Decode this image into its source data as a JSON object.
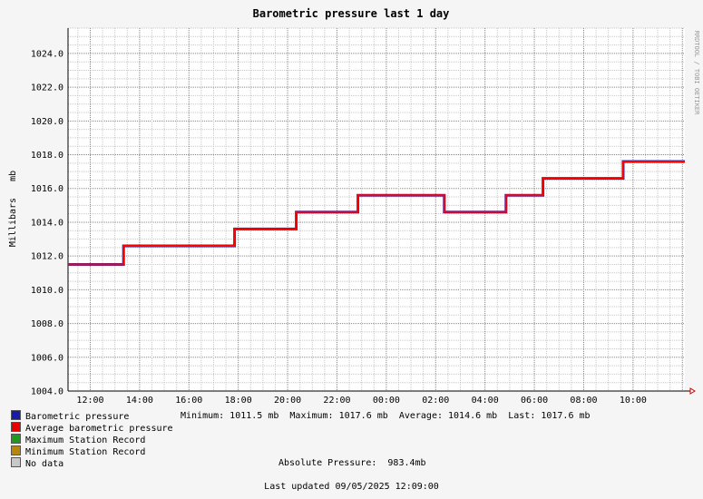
{
  "chart_data": {
    "type": "line",
    "title": "Barometric pressure last 1 day",
    "ylabel": "Millibars   mb",
    "watermark": "RRDTOOL / TOBI OETIKER",
    "ylim": [
      1004.0,
      1025.5
    ],
    "y_ticks": [
      "1004.0",
      "1006.0",
      "1008.0",
      "1010.0",
      "1012.0",
      "1014.0",
      "1016.0",
      "1018.0",
      "1020.0",
      "1022.0",
      "1024.0"
    ],
    "x_ticks": [
      "12:00",
      "14:00",
      "16:00",
      "18:00",
      "20:00",
      "22:00",
      "00:00",
      "02:00",
      "04:00",
      "06:00",
      "08:00",
      "10:00"
    ],
    "xlim_hours": [
      11.1,
      36.1
    ],
    "series": [
      {
        "name": "Average barometric pressure",
        "color": "#ff0000",
        "points": [
          [
            11.1,
            1011.5
          ],
          [
            13.35,
            1011.5
          ],
          [
            13.35,
            1012.6
          ],
          [
            17.85,
            1012.6
          ],
          [
            17.85,
            1013.6
          ],
          [
            20.35,
            1013.6
          ],
          [
            20.35,
            1014.6
          ],
          [
            22.85,
            1014.6
          ],
          [
            22.85,
            1015.6
          ],
          [
            26.35,
            1015.6
          ],
          [
            26.35,
            1014.6
          ],
          [
            28.85,
            1014.6
          ],
          [
            28.85,
            1015.6
          ],
          [
            30.35,
            1015.6
          ],
          [
            30.35,
            1016.6
          ],
          [
            33.6,
            1016.6
          ],
          [
            33.6,
            1017.6
          ],
          [
            36.1,
            1017.6
          ]
        ]
      }
    ]
  },
  "legend": [
    {
      "label": "Barometric pressure",
      "color": "#1a1aa8"
    },
    {
      "label": "Average barometric pressure",
      "color": "#e60000"
    },
    {
      "label": "Maximum Station Record",
      "color": "#1f9a1f"
    },
    {
      "label": "Minimum Station Record",
      "color": "#b8860b"
    },
    {
      "label": "No data",
      "color": "#c8c8c8"
    }
  ],
  "stats": "Minimum: 1011.5 mb  Maximum: 1017.6 mb  Average: 1014.6 mb  Last: 1017.6 mb",
  "absolute_pressure": "Absolute Pressure:  983.4mb",
  "last_updated": "Last updated 09/05/2025 12:09:00"
}
